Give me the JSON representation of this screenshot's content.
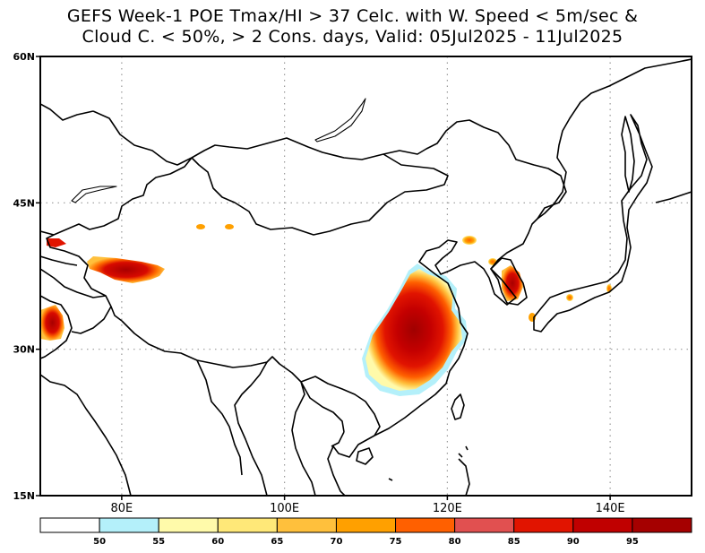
{
  "title": {
    "line1": "GEFS Week-1 POE Tmax/HI > 37 Celc. with W. Speed < 5m/sec &",
    "line2": "Cloud C. < 50%, > 2 Cons. days, Valid: 05Jul2025 - 11Jul2025"
  },
  "map": {
    "lat_range": [
      15,
      60
    ],
    "lon_range": [
      70,
      150
    ],
    "lat_ticks": [
      {
        "value": 60,
        "label": "60N"
      },
      {
        "value": 45,
        "label": "45N"
      },
      {
        "value": 30,
        "label": "30N"
      },
      {
        "value": 15,
        "label": "15N"
      }
    ],
    "lon_ticks": [
      {
        "value": 80,
        "label": "80E"
      },
      {
        "value": 100,
        "label": "100E"
      },
      {
        "value": 120,
        "label": "120E"
      },
      {
        "value": 140,
        "label": "140E"
      }
    ]
  },
  "colorbar": {
    "colors": [
      "#ffffff",
      "#b4f0fa",
      "#fffaaa",
      "#ffe878",
      "#ffc03c",
      "#ffa000",
      "#ff6000",
      "#e15050",
      "#e11400",
      "#c00000",
      "#a50000"
    ],
    "labels": [
      "50",
      "55",
      "60",
      "65",
      "70",
      "75",
      "80",
      "85",
      "90",
      "95"
    ]
  }
}
